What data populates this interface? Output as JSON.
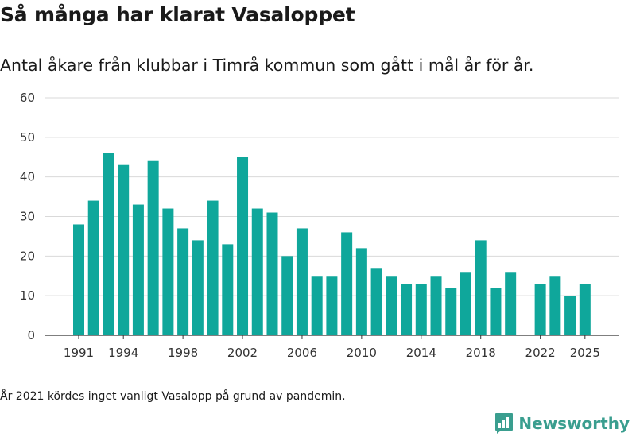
{
  "header": {
    "title": "Så många har klarat Vasaloppet",
    "subtitle": "Antal åkare från klubbar i Timrå kommun som gått i mål år för år."
  },
  "footer": {
    "note": "År 2021 kördes inget vanligt Vasalopp på grund av pandemin.",
    "brand": "Newsworthy"
  },
  "colors": {
    "bar": "#0fa79b",
    "grid": "#d9d9d9",
    "axis": "#333333",
    "brand": "#3a9e8f"
  },
  "chart_data": {
    "type": "bar",
    "title": "Så många har klarat Vasaloppet",
    "xlabel": "",
    "ylabel": "",
    "ylim": [
      0,
      60
    ],
    "yticks": [
      0,
      10,
      20,
      30,
      40,
      50,
      60
    ],
    "xtick_labels": [
      "1991",
      "1994",
      "1998",
      "2002",
      "2006",
      "2010",
      "2014",
      "2018",
      "2022",
      "2025"
    ],
    "categories": [
      "1991",
      "1992",
      "1993",
      "1994",
      "1995",
      "1996",
      "1997",
      "1998",
      "1999",
      "2000",
      "2001",
      "2002",
      "2003",
      "2004",
      "2005",
      "2006",
      "2007",
      "2008",
      "2009",
      "2010",
      "2011",
      "2012",
      "2013",
      "2014",
      "2015",
      "2016",
      "2017",
      "2018",
      "2019",
      "2020",
      "2021",
      "2022",
      "2023",
      "2024",
      "2025"
    ],
    "values": [
      28,
      34,
      46,
      43,
      33,
      44,
      32,
      27,
      24,
      34,
      23,
      45,
      32,
      31,
      20,
      27,
      15,
      15,
      26,
      22,
      17,
      15,
      13,
      13,
      15,
      12,
      16,
      24,
      12,
      16,
      null,
      13,
      15,
      10,
      13
    ]
  }
}
